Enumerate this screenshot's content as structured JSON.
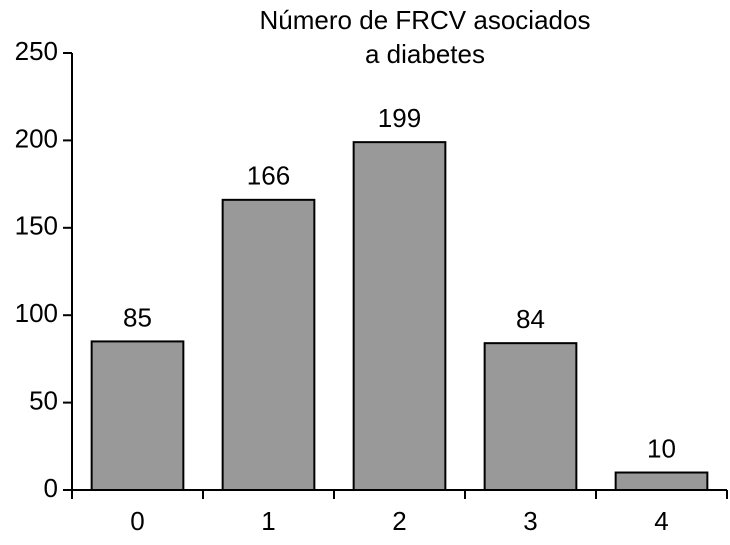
{
  "chart_data": {
    "type": "bar",
    "title": [
      "Número de FRCV asociados",
      "a diabetes"
    ],
    "categories": [
      "0",
      "1",
      "2",
      "3",
      "4"
    ],
    "values": [
      85,
      166,
      199,
      84,
      10
    ],
    "color": "#999999",
    "ylim": [
      0,
      250
    ],
    "yticks": [
      0,
      50,
      100,
      150,
      200,
      250
    ]
  }
}
